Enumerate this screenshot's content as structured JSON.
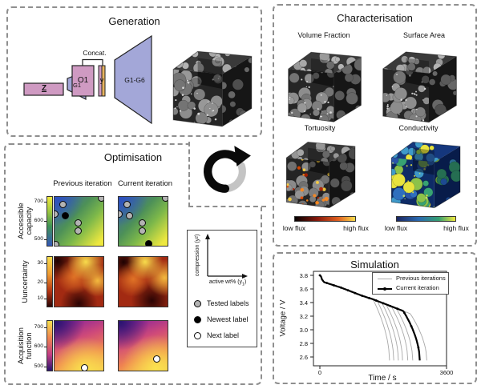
{
  "colors": {
    "pink_block": "#cf9ac2",
    "blue_block": "#a3a7d8",
    "stripe_orange": "#e7b35e",
    "tested_fill": "#b3b3b3",
    "newest_fill": "#000000",
    "next_fill": "#ffffff",
    "panel_border": "#8f8f8f"
  },
  "icons": {
    "center": "cycle-refresh-arrow"
  },
  "generation": {
    "title": "Generation",
    "z_label": "Z",
    "g1_label": "G1",
    "o1_label": "O1",
    "y_label": "y",
    "concat_label": "Concat.",
    "g16_label": "G1-G6"
  },
  "characterisation": {
    "title": "Characterisation",
    "volume_fraction_label": "Volume Fraction",
    "surface_area_label": "Surface Area",
    "tortuosity_label": "Tortuosity",
    "conductivity_label": "Conductivity",
    "tortuosity_low": "low flux",
    "tortuosity_high": "high flux",
    "conductivity_low": "low flux",
    "conductivity_high": "high flux"
  },
  "optimisation": {
    "title": "Optimisation",
    "col_headers": [
      "Previous iteration",
      "Current iteration"
    ],
    "rows": [
      {
        "label": "Accessible capacity",
        "ticks": [
          "700",
          "600",
          "500"
        ]
      },
      {
        "label": "Uuncertainty",
        "ticks": [
          "30",
          "20",
          "10"
        ]
      },
      {
        "label": "Acquisition function",
        "ticks": [
          "700",
          "600",
          "500"
        ]
      }
    ]
  },
  "legend_box": {
    "y_axis_text": "compression (y",
    "y_axis_sub": "2",
    "y_axis_close": ")",
    "x_axis_text": "active wt% (y",
    "x_axis_sub": "1",
    "x_axis_close": ")",
    "items": [
      {
        "marker": "tested",
        "label": "Tested labels"
      },
      {
        "marker": "newest",
        "label": "Newest label"
      },
      {
        "marker": "next",
        "label": "Next label"
      }
    ]
  },
  "simulation": {
    "title": "Simulation",
    "xlabel": "Time / s",
    "ylabel": "Voltage / V",
    "yticks": [
      "3.8",
      "3.6",
      "3.4",
      "3.2",
      "3.0",
      "2.8",
      "2.6"
    ],
    "xticks": [
      "0",
      "3600"
    ],
    "legend": [
      "Previous iterations",
      "Current iteration"
    ]
  },
  "chart_data": [
    {
      "type": "line",
      "title": "Simulation",
      "xlabel": "Time / s",
      "ylabel": "Voltage / V",
      "xlim": [
        0,
        3600
      ],
      "ylim": [
        2.5,
        3.85
      ],
      "xticks": [
        0,
        3600
      ],
      "yticks": [
        3.8,
        3.6,
        3.4,
        3.2,
        3.0,
        2.8,
        2.6
      ],
      "grid": false,
      "legend_position": "top-right",
      "cutoff_voltage": 2.55,
      "baseline_profile": [
        [
          0,
          3.8
        ],
        [
          30,
          3.79
        ],
        [
          60,
          3.74
        ],
        [
          120,
          3.7
        ],
        [
          300,
          3.67
        ],
        [
          600,
          3.62
        ],
        [
          900,
          3.56
        ],
        [
          1200,
          3.5
        ],
        [
          1500,
          3.45
        ],
        [
          1800,
          3.39
        ],
        [
          2100,
          3.33
        ],
        [
          2400,
          3.27
        ],
        [
          2700,
          3.21
        ],
        [
          3000,
          3.15
        ],
        [
          3300,
          3.09
        ]
      ],
      "series": [
        {
          "name": "Previous iterations",
          "style": "thin-gray",
          "end_times": [
            1980,
            2100,
            2230,
            2350,
            2500,
            2640,
            3040
          ]
        },
        {
          "name": "Current iteration",
          "style": "thick-black-markers",
          "end_times": [
            2840
          ]
        }
      ]
    },
    {
      "type": "heatmap",
      "row": "Accessible capacity",
      "columns": [
        "Previous iteration",
        "Current iteration"
      ],
      "colorbar": {
        "orientation": "vertical",
        "ticks": [
          700,
          600,
          500
        ],
        "colormap": "blue-green-yellow"
      },
      "map_ids": [
        "cap-prev",
        "cap-curr"
      ],
      "markers": [
        [
          {
            "x": 0.17,
            "y": 0.16,
            "t": "tested"
          },
          {
            "x": 0.0,
            "y": 0.37,
            "t": "tested"
          },
          {
            "x": 0.23,
            "y": 0.4,
            "t": "newest"
          },
          {
            "x": 0.5,
            "y": 0.55,
            "t": "tested"
          },
          {
            "x": 0.5,
            "y": 0.72,
            "t": "tested"
          },
          {
            "x": 0.99,
            "y": 0.02,
            "t": "tested"
          },
          {
            "x": 0.02,
            "y": 1.0,
            "t": "tested"
          }
        ],
        [
          {
            "x": 0.17,
            "y": 0.16,
            "t": "tested"
          },
          {
            "x": 0.0,
            "y": 0.37,
            "t": "tested"
          },
          {
            "x": 0.23,
            "y": 0.4,
            "t": "tested"
          },
          {
            "x": 0.5,
            "y": 0.55,
            "t": "tested"
          },
          {
            "x": 0.5,
            "y": 0.72,
            "t": "tested"
          },
          {
            "x": 0.99,
            "y": 0.02,
            "t": "tested"
          },
          {
            "x": 0.63,
            "y": 0.99,
            "t": "newest"
          }
        ]
      ]
    },
    {
      "type": "heatmap",
      "row": "Uuncertainty",
      "columns": [
        "Previous iteration",
        "Current iteration"
      ],
      "colorbar": {
        "orientation": "vertical",
        "ticks": [
          30,
          20,
          10
        ],
        "colormap": "black-red-yellow"
      },
      "map_ids": [
        "unc-prev",
        "unc-curr"
      ],
      "markers": [
        [],
        []
      ]
    },
    {
      "type": "heatmap",
      "row": "Acquisition function",
      "columns": [
        "Previous iteration",
        "Current iteration"
      ],
      "colorbar": {
        "orientation": "vertical",
        "ticks": [
          700,
          600,
          500
        ],
        "colormap": "plasma"
      },
      "map_ids": [
        "acq-prev",
        "acq-curr"
      ],
      "markers": [
        [
          {
            "x": 0.64,
            "y": 0.97,
            "t": "next"
          }
        ],
        [
          {
            "x": 0.8,
            "y": 0.79,
            "t": "next"
          }
        ]
      ]
    },
    {
      "type": "heatmap",
      "panel": "Characterisation",
      "colorbars": [
        {
          "for": "Tortuosity",
          "label_low": "low flux",
          "label_high": "high flux",
          "colormap": "black-red-yellow"
        },
        {
          "for": "Conductivity",
          "label_low": "low flux",
          "label_high": "high flux",
          "colormap": "blue-green-yellow"
        }
      ]
    }
  ]
}
